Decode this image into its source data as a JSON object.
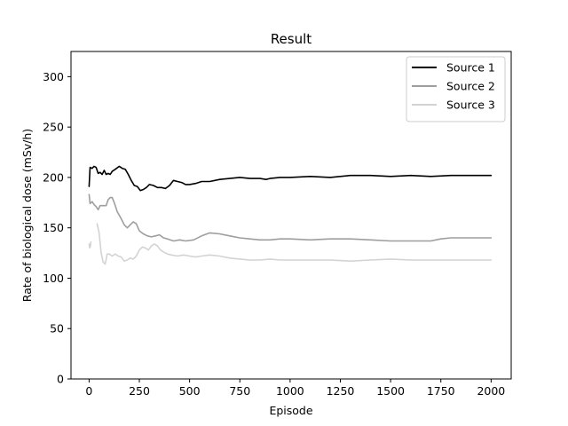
{
  "chart_data": {
    "type": "line",
    "title": "Result",
    "xlabel": "Episode",
    "ylabel": "Rate of biological dose (mSv/h)",
    "xlim": [
      -90,
      2100
    ],
    "ylim": [
      0,
      325
    ],
    "xticks": [
      0,
      250,
      500,
      750,
      1000,
      1250,
      1500,
      1750,
      2000
    ],
    "yticks": [
      0,
      50,
      100,
      150,
      200,
      250,
      300
    ],
    "grid": false,
    "legend_position": "top-right",
    "series": [
      {
        "name": "Source 1",
        "color": "#000000",
        "points": [
          [
            0,
            191
          ],
          [
            5,
            210
          ],
          [
            15,
            209
          ],
          [
            25,
            211
          ],
          [
            35,
            210
          ],
          [
            45,
            204
          ],
          [
            55,
            205
          ],
          [
            65,
            203
          ],
          [
            75,
            207
          ],
          [
            85,
            203
          ],
          [
            95,
            204
          ],
          [
            105,
            203
          ],
          [
            115,
            206
          ],
          [
            130,
            208
          ],
          [
            150,
            211
          ],
          [
            165,
            209
          ],
          [
            180,
            208
          ],
          [
            195,
            203
          ],
          [
            210,
            197
          ],
          [
            225,
            192
          ],
          [
            240,
            191
          ],
          [
            255,
            187
          ],
          [
            270,
            188
          ],
          [
            285,
            190
          ],
          [
            300,
            193
          ],
          [
            320,
            192
          ],
          [
            340,
            190
          ],
          [
            360,
            190
          ],
          [
            380,
            189
          ],
          [
            400,
            192
          ],
          [
            420,
            197
          ],
          [
            440,
            196
          ],
          [
            460,
            195
          ],
          [
            480,
            193
          ],
          [
            500,
            193
          ],
          [
            530,
            194
          ],
          [
            560,
            196
          ],
          [
            600,
            196
          ],
          [
            650,
            198
          ],
          [
            700,
            199
          ],
          [
            750,
            200
          ],
          [
            800,
            199
          ],
          [
            850,
            199
          ],
          [
            880,
            198
          ],
          [
            900,
            199
          ],
          [
            950,
            200
          ],
          [
            1000,
            200
          ],
          [
            1100,
            201
          ],
          [
            1200,
            200
          ],
          [
            1300,
            202
          ],
          [
            1400,
            202
          ],
          [
            1500,
            201
          ],
          [
            1600,
            202
          ],
          [
            1700,
            201
          ],
          [
            1800,
            202
          ],
          [
            1900,
            202
          ],
          [
            2000,
            202
          ]
        ]
      },
      {
        "name": "Source 2",
        "color": "#9e9e9e",
        "points": [
          [
            0,
            183
          ],
          [
            5,
            174
          ],
          [
            15,
            176
          ],
          [
            25,
            173
          ],
          [
            35,
            171
          ],
          [
            45,
            168
          ],
          [
            55,
            172
          ],
          [
            70,
            172
          ],
          [
            85,
            172
          ],
          [
            95,
            178
          ],
          [
            105,
            180
          ],
          [
            115,
            180
          ],
          [
            125,
            175
          ],
          [
            140,
            166
          ],
          [
            160,
            159
          ],
          [
            175,
            153
          ],
          [
            190,
            150
          ],
          [
            205,
            153
          ],
          [
            220,
            156
          ],
          [
            235,
            154
          ],
          [
            250,
            147
          ],
          [
            270,
            144
          ],
          [
            290,
            142
          ],
          [
            310,
            141
          ],
          [
            330,
            142
          ],
          [
            350,
            143
          ],
          [
            370,
            140
          ],
          [
            390,
            139
          ],
          [
            420,
            137
          ],
          [
            450,
            138
          ],
          [
            480,
            137
          ],
          [
            520,
            138
          ],
          [
            560,
            142
          ],
          [
            600,
            145
          ],
          [
            650,
            144
          ],
          [
            700,
            142
          ],
          [
            750,
            140
          ],
          [
            800,
            139
          ],
          [
            850,
            138
          ],
          [
            900,
            138
          ],
          [
            950,
            139
          ],
          [
            1000,
            139
          ],
          [
            1100,
            138
          ],
          [
            1200,
            139
          ],
          [
            1300,
            139
          ],
          [
            1400,
            138
          ],
          [
            1500,
            137
          ],
          [
            1600,
            137
          ],
          [
            1700,
            137
          ],
          [
            1750,
            139
          ],
          [
            1800,
            140
          ],
          [
            1900,
            140
          ],
          [
            2000,
            140
          ]
        ]
      },
      {
        "name": "Source 3",
        "color": "#d3d3d3",
        "points": [
          [
            40,
            154
          ],
          [
            50,
            145
          ],
          [
            60,
            125
          ],
          [
            70,
            116
          ],
          [
            80,
            114
          ],
          [
            90,
            124
          ],
          [
            100,
            124
          ],
          [
            115,
            122
          ],
          [
            130,
            124
          ],
          [
            145,
            122
          ],
          [
            160,
            121
          ],
          [
            175,
            117
          ],
          [
            190,
            118
          ],
          [
            205,
            120
          ],
          [
            220,
            119
          ],
          [
            235,
            122
          ],
          [
            250,
            128
          ],
          [
            265,
            131
          ],
          [
            280,
            130
          ],
          [
            295,
            128
          ],
          [
            310,
            132
          ],
          [
            325,
            134
          ],
          [
            340,
            132
          ],
          [
            355,
            128
          ],
          [
            370,
            126
          ],
          [
            390,
            124
          ],
          [
            410,
            123
          ],
          [
            440,
            122
          ],
          [
            470,
            123
          ],
          [
            500,
            122
          ],
          [
            530,
            121
          ],
          [
            560,
            122
          ],
          [
            600,
            123
          ],
          [
            650,
            122
          ],
          [
            700,
            120
          ],
          [
            750,
            119
          ],
          [
            800,
            118
          ],
          [
            850,
            118
          ],
          [
            900,
            119
          ],
          [
            950,
            118
          ],
          [
            1000,
            118
          ],
          [
            1100,
            118
          ],
          [
            1200,
            118
          ],
          [
            1300,
            117
          ],
          [
            1400,
            118
          ],
          [
            1500,
            119
          ],
          [
            1600,
            118
          ],
          [
            1700,
            118
          ],
          [
            1800,
            118
          ],
          [
            1900,
            118
          ],
          [
            2000,
            118
          ]
        ]
      },
      {
        "name": "",
        "color": "#d3d3d3",
        "points": [
          [
            0,
            134
          ],
          [
            3,
            130
          ],
          [
            6,
            131
          ],
          [
            9,
            136
          ]
        ]
      }
    ]
  }
}
